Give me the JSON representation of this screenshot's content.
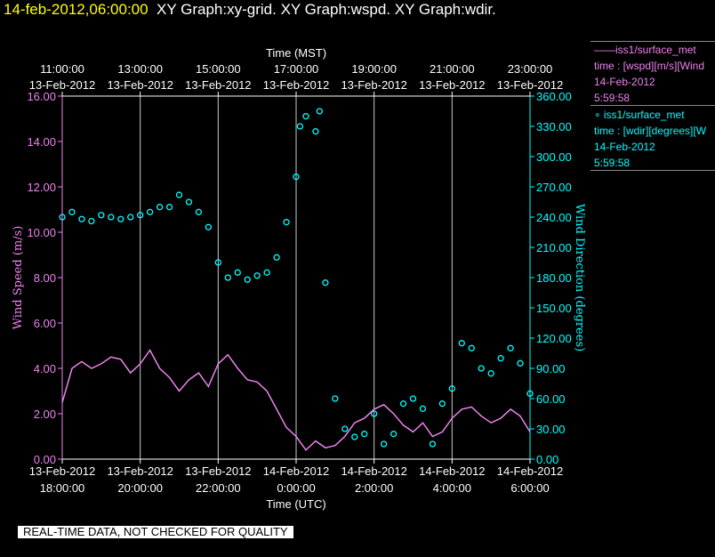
{
  "title": {
    "time": "14-feb-2012,06:00:00",
    "rest": "XY Graph:xy-grid.  XY Graph:wspd.  XY Graph:wdir."
  },
  "legend": {
    "wspd": {
      "line1": "——iss1/surface_met",
      "line2": "time : [wspd][m/s][Wind",
      "line3": "14-Feb-2012",
      "line4": "5:59:58",
      "color": "#ee82ee"
    },
    "wdir": {
      "line1": "∘ iss1/surface_met",
      "line2": "time : [wdir][degrees][W",
      "line3": "14-Feb-2012",
      "line4": "5:59:58",
      "color": "#00ffff"
    }
  },
  "disclaimer": "REAL-TIME DATA, NOT CHECKED FOR QUALITY",
  "chart_data": {
    "type": "line",
    "top_axis": {
      "label": "Time (MST)",
      "ticks": [
        {
          "time": "11:00:00",
          "date": "13-Feb-2012"
        },
        {
          "time": "13:00:00",
          "date": "13-Feb-2012"
        },
        {
          "time": "15:00:00",
          "date": "13-Feb-2012"
        },
        {
          "time": "17:00:00",
          "date": "13-Feb-2012"
        },
        {
          "time": "19:00:00",
          "date": "13-Feb-2012"
        },
        {
          "time": "21:00:00",
          "date": "13-Feb-2012"
        },
        {
          "time": "23:00:00",
          "date": "13-Feb-2012"
        }
      ]
    },
    "bottom_axis": {
      "label": "Time (UTC)",
      "ticks": [
        {
          "date": "13-Feb-2012",
          "time": "18:00:00"
        },
        {
          "date": "13-Feb-2012",
          "time": "20:00:00"
        },
        {
          "date": "13-Feb-2012",
          "time": "22:00:00"
        },
        {
          "date": "14-Feb-2012",
          "time": "0:00:00"
        },
        {
          "date": "14-Feb-2012",
          "time": "2:00:00"
        },
        {
          "date": "14-Feb-2012",
          "time": "4:00:00"
        },
        {
          "date": "14-Feb-2012",
          "time": "6:00:00"
        }
      ],
      "range_utc_hours_after_2012_02_13_18Z": [
        0,
        12
      ]
    },
    "left_axis": {
      "label": "Wind Speed (m/s)",
      "ticks": [
        "0.00",
        "2.00",
        "4.00",
        "6.00",
        "8.00",
        "10.00",
        "12.00",
        "14.00",
        "16.00"
      ],
      "ylim": [
        0,
        16
      ],
      "color": "#ee82ee"
    },
    "right_axis": {
      "label": "Wind Direction (degrees)",
      "ticks": [
        "0.00",
        "30.00",
        "60.00",
        "90.00",
        "120.00",
        "150.00",
        "180.00",
        "210.00",
        "240.00",
        "270.00",
        "300.00",
        "330.00",
        "360.00"
      ],
      "ylim": [
        0,
        360
      ],
      "color": "#00ffff"
    },
    "grid": "vertical",
    "series": [
      {
        "name": "iss1/surface_met time : [wspd][m/s]",
        "axis": "left",
        "style": "line",
        "color": "#ee82ee",
        "x_hours": [
          0,
          0.25,
          0.5,
          0.75,
          1.0,
          1.25,
          1.5,
          1.75,
          2.0,
          2.25,
          2.5,
          2.75,
          3.0,
          3.25,
          3.5,
          3.75,
          4.0,
          4.25,
          4.5,
          4.75,
          5.0,
          5.25,
          5.5,
          5.75,
          6.0,
          6.25,
          6.5,
          6.75,
          7.0,
          7.25,
          7.5,
          7.75,
          8.0,
          8.25,
          8.5,
          8.75,
          9.0,
          9.25,
          9.5,
          9.75,
          10.0,
          10.25,
          10.5,
          10.75,
          11.0,
          11.25,
          11.5,
          11.75,
          12.0
        ],
        "y": [
          2.5,
          4.0,
          4.3,
          4.0,
          4.2,
          4.5,
          4.4,
          3.8,
          4.2,
          4.8,
          4.0,
          3.6,
          3.0,
          3.5,
          3.8,
          3.2,
          4.2,
          4.6,
          4.0,
          3.5,
          3.4,
          3.0,
          2.2,
          1.4,
          1.0,
          0.4,
          0.8,
          0.5,
          0.6,
          1.0,
          1.6,
          1.8,
          2.2,
          2.4,
          2.0,
          1.5,
          1.2,
          1.6,
          1.0,
          1.2,
          1.8,
          2.2,
          2.3,
          1.9,
          1.6,
          1.8,
          2.2,
          1.9,
          1.2
        ]
      },
      {
        "name": "iss1/surface_met time : [wdir][degrees]",
        "axis": "right",
        "style": "markers",
        "color": "#00ffff",
        "x_hours": [
          0,
          0.25,
          0.5,
          0.75,
          1.0,
          1.25,
          1.5,
          1.75,
          2.0,
          2.25,
          2.5,
          2.75,
          3.0,
          3.25,
          3.5,
          3.75,
          4.0,
          4.25,
          4.5,
          4.75,
          5.0,
          5.25,
          5.5,
          5.75,
          6.0,
          6.1,
          6.25,
          6.5,
          6.6,
          6.75,
          7.0,
          7.25,
          7.5,
          7.75,
          8.0,
          8.25,
          8.5,
          8.75,
          9.0,
          9.25,
          9.5,
          9.75,
          10.0,
          10.25,
          10.5,
          10.75,
          11.0,
          11.25,
          11.5,
          11.75,
          12.0
        ],
        "y": [
          240,
          245,
          238,
          236,
          242,
          240,
          238,
          240,
          242,
          245,
          250,
          250,
          262,
          255,
          245,
          230,
          195,
          180,
          185,
          178,
          182,
          185,
          200,
          235,
          280,
          330,
          340,
          325,
          345,
          175,
          60,
          30,
          22,
          25,
          45,
          15,
          25,
          55,
          60,
          50,
          15,
          55,
          70,
          115,
          110,
          90,
          85,
          100,
          110,
          95,
          65
        ]
      }
    ]
  }
}
